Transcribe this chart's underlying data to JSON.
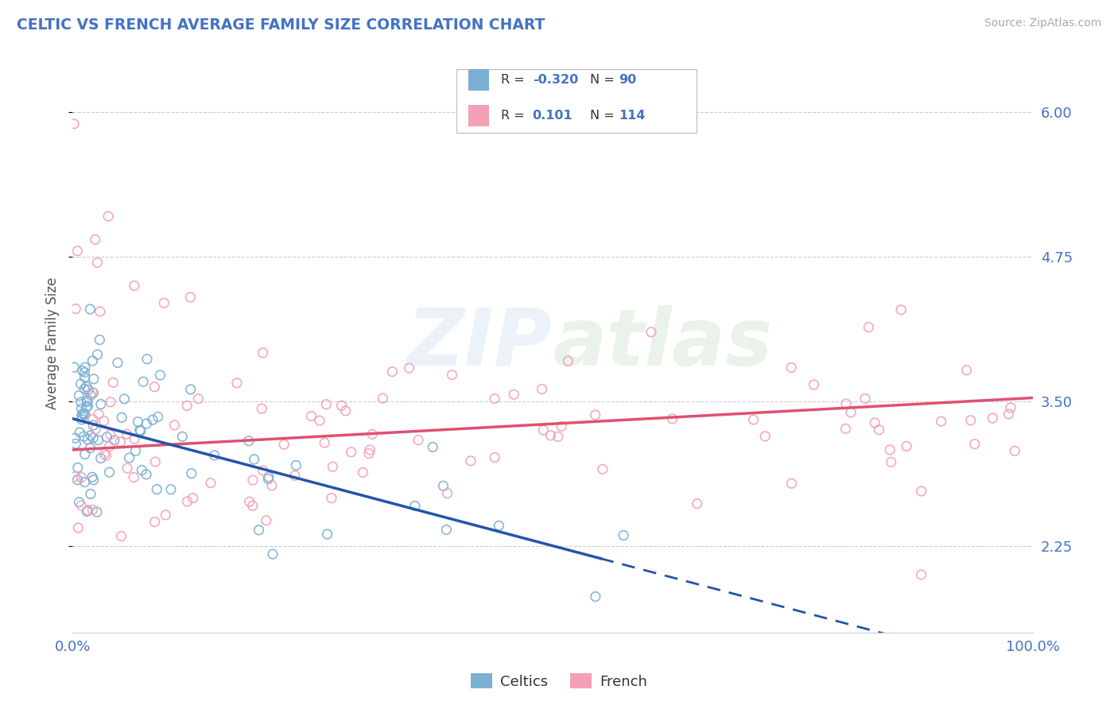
{
  "title": "CELTIC VS FRENCH AVERAGE FAMILY SIZE CORRELATION CHART",
  "source_text": "Source: ZipAtlas.com",
  "ylabel": "Average Family Size",
  "xlim": [
    0.0,
    100.0
  ],
  "ylim": [
    1.5,
    6.5
  ],
  "yticks": [
    2.25,
    3.5,
    4.75,
    6.0
  ],
  "celtics_color": "#7bafd4",
  "french_color": "#f4a0b5",
  "celtics_label": "Celtics",
  "french_label": "French",
  "celtics_R": -0.32,
  "celtics_N": 90,
  "french_R": 0.101,
  "french_N": 114,
  "watermark": "ZIPatlas",
  "background_color": "#ffffff",
  "grid_color": "#cccccc",
  "axis_label_color": "#4472c4",
  "title_color": "#4472c4",
  "celtics_line_color": "#2255aa",
  "french_line_color": "#e05070",
  "celtics_intercept": 3.35,
  "celtics_slope": -0.022,
  "french_intercept": 3.08,
  "french_slope": 0.0045,
  "celtics_solid_end": 55
}
